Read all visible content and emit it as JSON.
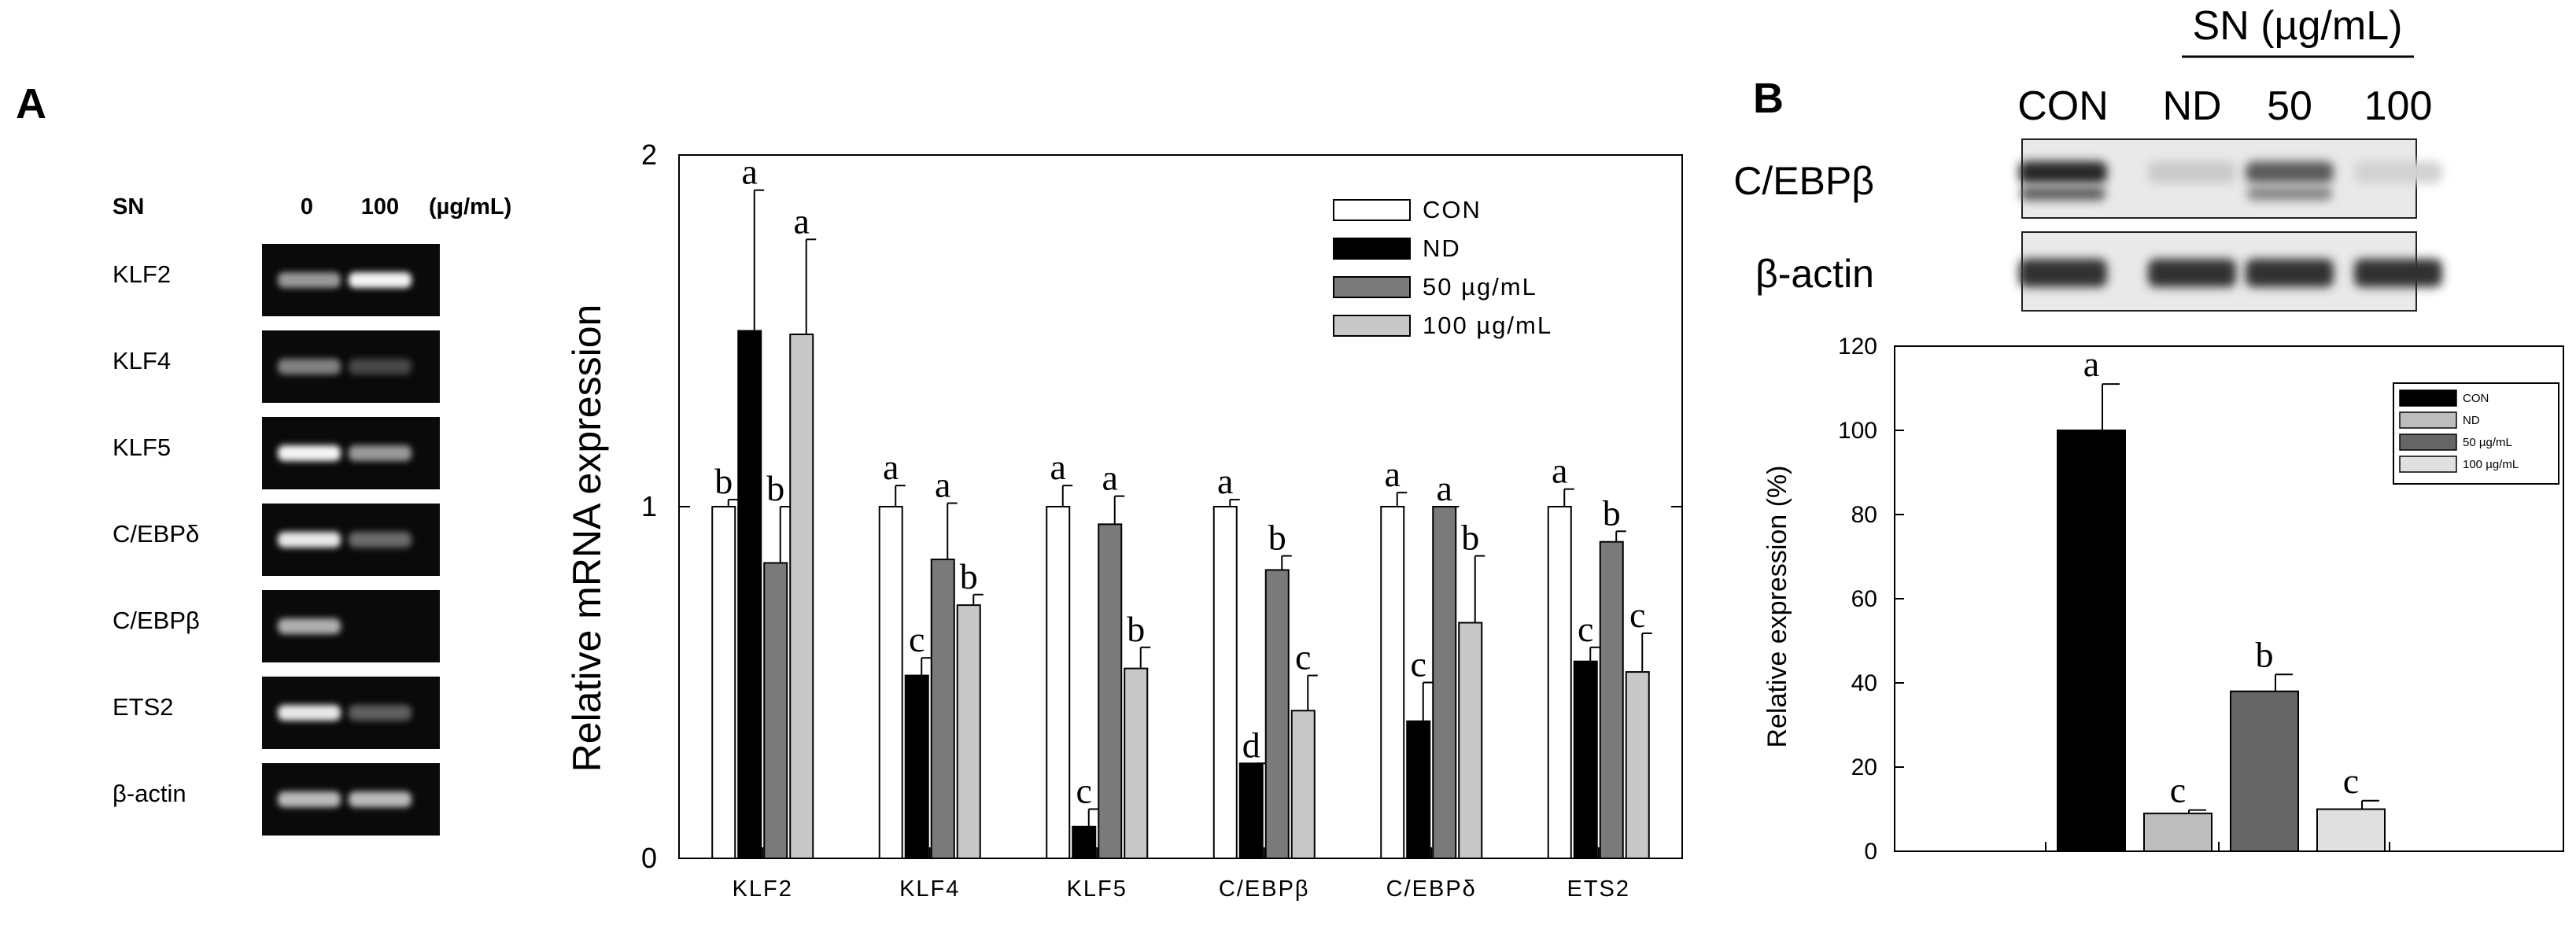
{
  "panel_a": {
    "letter": "A",
    "gel": {
      "treatment_label": "SN",
      "lanes": [
        "0",
        "100"
      ],
      "unit": "(µg/mL)",
      "rows": [
        {
          "label": "KLF2",
          "i0": 0.55,
          "i100": 0.95
        },
        {
          "label": "KLF4",
          "i0": 0.45,
          "i100": 0.2
        },
        {
          "label": "KLF5",
          "i0": 0.95,
          "i100": 0.55
        },
        {
          "label": "C/EBPδ",
          "i0": 0.9,
          "i100": 0.35
        },
        {
          "label": "C/EBPβ",
          "i0": 0.65,
          "i100": 0.0
        },
        {
          "label": "ETS2",
          "i0": 0.9,
          "i100": 0.3
        },
        {
          "label": "β-actin",
          "i0": 0.7,
          "i100": 0.7
        }
      ]
    }
  },
  "panel_b": {
    "letter": "B",
    "blot": {
      "treatment_label": "SN (µg/mL)",
      "lanes": [
        "CON",
        "ND",
        "50",
        "100"
      ],
      "rows": [
        {
          "label": "C/EBPβ",
          "intensities": [
            0.9,
            0.15,
            0.65,
            0.12
          ]
        },
        {
          "label": "β-actin",
          "intensities": [
            0.85,
            0.85,
            0.85,
            0.85
          ]
        }
      ]
    }
  },
  "chart_data": [
    {
      "type": "bar",
      "panel": "A",
      "title": "",
      "xlabel": "",
      "ylabel": "Relative mRNA expression",
      "ylim": [
        0,
        2
      ],
      "yticks": [
        "0",
        "1",
        "2"
      ],
      "grid": false,
      "legend_position": "top-right",
      "categories": [
        "KLF2",
        "KLF4",
        "KLF5",
        "C/EBPβ",
        "C/EBPδ",
        "ETS2"
      ],
      "series": [
        {
          "name": "CON",
          "color": "#ffffff",
          "values": [
            1.0,
            1.0,
            1.0,
            1.0,
            1.0,
            1.0
          ],
          "errors": [
            0.02,
            0.06,
            0.06,
            0.02,
            0.04,
            0.05
          ],
          "labels": [
            "b",
            "a",
            "a",
            "a",
            "a",
            "a"
          ]
        },
        {
          "name": "ND",
          "color": "#000000",
          "values": [
            1.5,
            0.52,
            0.09,
            0.27,
            0.39,
            0.56
          ],
          "errors": [
            0.4,
            0.05,
            0.05,
            0.0,
            0.11,
            0.04
          ],
          "labels": [
            "a",
            "c",
            "c",
            "d",
            "c",
            "c"
          ]
        },
        {
          "name": "50 µg/mL",
          "color": "#7a7a7a",
          "values": [
            0.84,
            0.85,
            0.95,
            0.82,
            1.0,
            0.9
          ],
          "errors": [
            0.16,
            0.16,
            0.08,
            0.04,
            0.0,
            0.03
          ],
          "labels": [
            "b",
            "a",
            "a",
            "b",
            "a",
            "b"
          ]
        },
        {
          "name": "100 µg/mL",
          "color": "#c8c8c8",
          "values": [
            1.49,
            0.72,
            0.54,
            0.42,
            0.67,
            0.53
          ],
          "errors": [
            0.27,
            0.03,
            0.06,
            0.1,
            0.19,
            0.11
          ],
          "labels": [
            "a",
            "b",
            "b",
            "c",
            "b",
            "c"
          ]
        }
      ]
    },
    {
      "type": "bar",
      "panel": "B",
      "title": "",
      "xlabel": "",
      "ylabel": "Relative expression (%)",
      "ylim": [
        0,
        120
      ],
      "yticks": [
        "0",
        "20",
        "40",
        "60",
        "80",
        "100",
        "120"
      ],
      "grid": false,
      "legend_position": "top-right",
      "categories": [
        "CON",
        "ND",
        "50 µg/mL",
        "100 µg/mL"
      ],
      "series": [
        {
          "name": "CON",
          "color": "#000000",
          "value": 100,
          "error": 11,
          "label": "a"
        },
        {
          "name": "ND",
          "color": "#bdbdbd",
          "value": 9,
          "error": 0.8,
          "label": "c"
        },
        {
          "name": "50 µg/mL",
          "color": "#666666",
          "value": 38,
          "error": 4,
          "label": "b"
        },
        {
          "name": "100 µg/mL",
          "color": "#e0e0e0",
          "value": 10,
          "error": 2,
          "label": "c"
        }
      ]
    }
  ]
}
